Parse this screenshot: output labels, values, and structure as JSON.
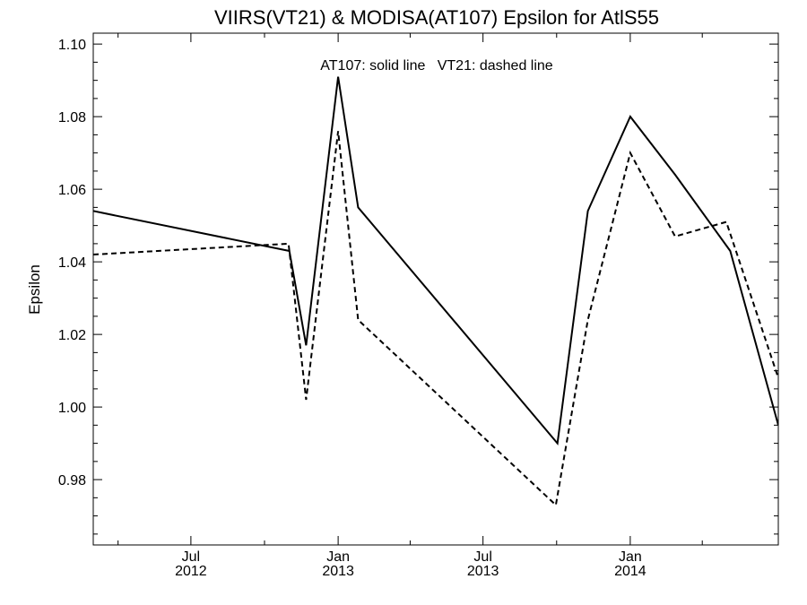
{
  "chart_data": {
    "type": "line",
    "title": "VIIRS(VT21) & MODISA(AT107)  Epsilon for AtlS55",
    "xlabel": "",
    "ylabel": "Epsilon",
    "annotation": "AT107: solid line   VT21: dashed line",
    "ylim": [
      0.962,
      1.103
    ],
    "xlim": [
      "2012-03-01",
      "2014-07-05"
    ],
    "yticks": [
      "0.98",
      "1.00",
      "1.02",
      "1.04",
      "1.06",
      "1.08",
      "1.10"
    ],
    "xticks": [
      {
        "date": "2012-07-01",
        "line1": "Jul",
        "line2": "2012"
      },
      {
        "date": "2013-01-01",
        "line1": "Jan",
        "line2": "2013"
      },
      {
        "date": "2013-07-01",
        "line1": "Jul",
        "line2": "2013"
      },
      {
        "date": "2014-01-01",
        "line1": "Jan",
        "line2": "2014"
      }
    ],
    "grid": false,
    "series": [
      {
        "name": "AT107",
        "style": "solid",
        "color": "#000000",
        "points": [
          {
            "x": "2012-03-01",
            "y": 1.054
          },
          {
            "x": "2012-11-01",
            "y": 1.043
          },
          {
            "x": "2012-11-22",
            "y": 1.017
          },
          {
            "x": "2013-01-01",
            "y": 1.091
          },
          {
            "x": "2013-01-26",
            "y": 1.055
          },
          {
            "x": "2013-10-02",
            "y": 0.99
          },
          {
            "x": "2013-11-09",
            "y": 1.054
          },
          {
            "x": "2014-01-01",
            "y": 1.08
          },
          {
            "x": "2014-02-26",
            "y": 1.064
          },
          {
            "x": "2014-05-06",
            "y": 1.043
          },
          {
            "x": "2014-07-05",
            "y": 0.995
          }
        ]
      },
      {
        "name": "VT21",
        "style": "dashed",
        "color": "#000000",
        "points": [
          {
            "x": "2012-03-01",
            "y": 1.042
          },
          {
            "x": "2012-10-31",
            "y": 1.045
          },
          {
            "x": "2012-11-22",
            "y": 1.002
          },
          {
            "x": "2013-01-01",
            "y": 1.076
          },
          {
            "x": "2013-01-26",
            "y": 1.024
          },
          {
            "x": "2013-09-30",
            "y": 0.973
          },
          {
            "x": "2013-11-09",
            "y": 1.024
          },
          {
            "x": "2014-01-01",
            "y": 1.07
          },
          {
            "x": "2014-02-26",
            "y": 1.047
          },
          {
            "x": "2014-05-01",
            "y": 1.051
          },
          {
            "x": "2014-07-05",
            "y": 1.008
          }
        ]
      }
    ]
  }
}
